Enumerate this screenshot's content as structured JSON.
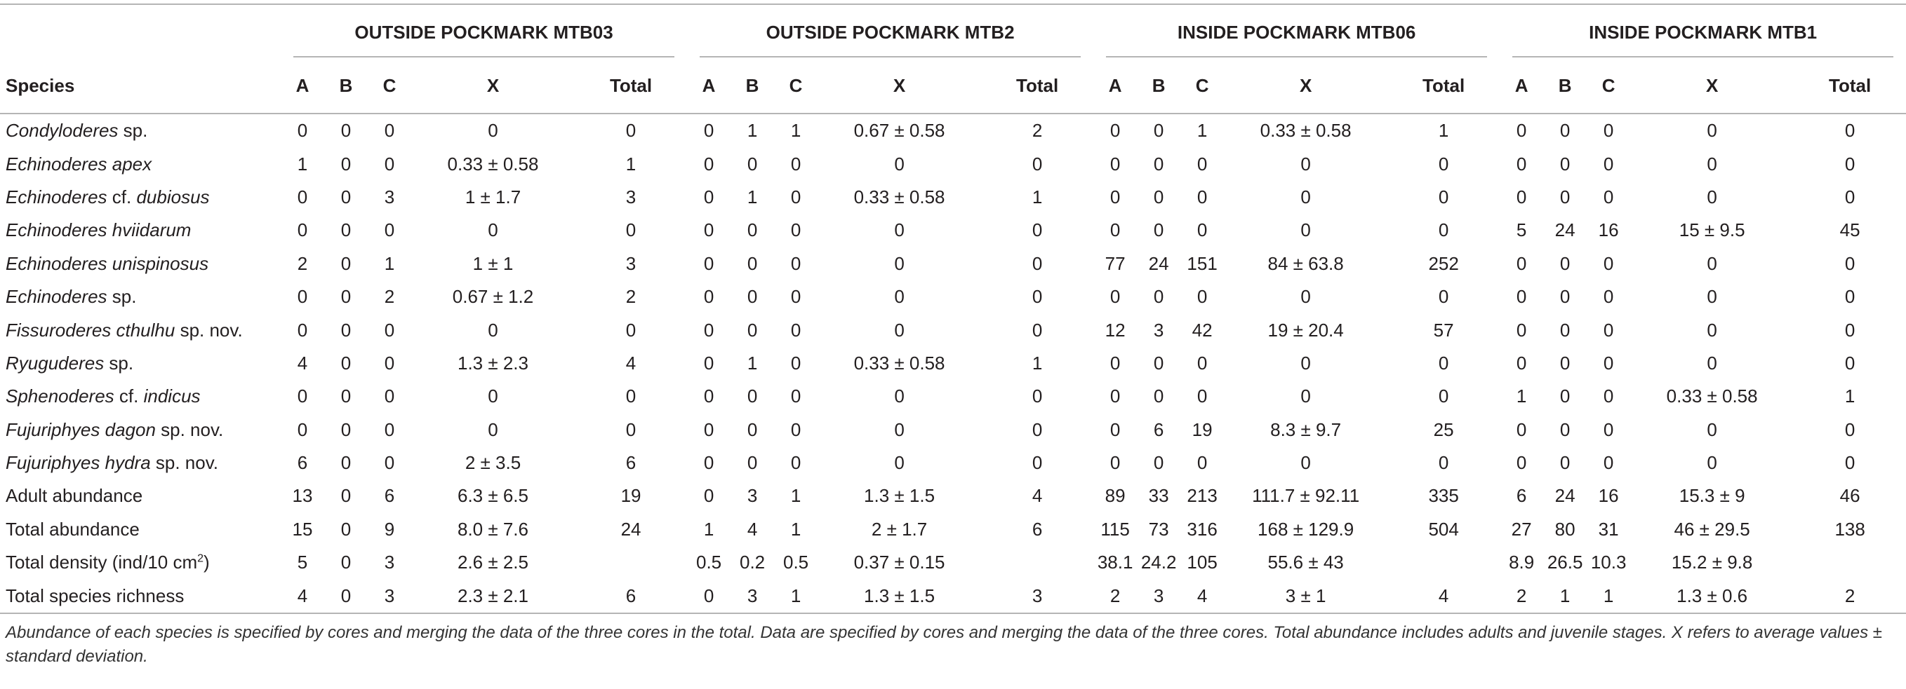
{
  "table": {
    "groups": [
      "OUTSIDE POCKMARK MTB03",
      "OUTSIDE POCKMARK MTB2",
      "INSIDE POCKMARK MTB06",
      "INSIDE POCKMARK MTB1"
    ],
    "header": [
      "Species",
      "A",
      "B",
      "C",
      "X",
      "Total",
      "A",
      "B",
      "C",
      "X",
      "Total",
      "A",
      "B",
      "C",
      "X",
      "Total",
      "A",
      "B",
      "C",
      "X",
      "Total"
    ],
    "rows": [
      {
        "species": [
          {
            "text": "Condyloderes",
            "italic": true
          },
          {
            "text": " sp."
          }
        ],
        "cells": [
          0,
          0,
          0,
          0,
          0,
          0,
          1,
          1,
          "0.67 ± 0.58",
          2,
          0,
          0,
          1,
          "0.33 ± 0.58",
          1,
          0,
          0,
          0,
          0,
          0
        ]
      },
      {
        "species": [
          {
            "text": "Echinoderes apex",
            "italic": true
          }
        ],
        "cells": [
          1,
          0,
          0,
          "0.33 ± 0.58",
          1,
          0,
          0,
          0,
          0,
          0,
          0,
          0,
          0,
          0,
          0,
          0,
          0,
          0,
          0,
          0
        ]
      },
      {
        "species": [
          {
            "text": "Echinoderes",
            "italic": true
          },
          {
            "text": " cf. "
          },
          {
            "text": "dubiosus",
            "italic": true
          }
        ],
        "cells": [
          0,
          0,
          3,
          "1 ± 1.7",
          3,
          0,
          1,
          0,
          "0.33 ± 0.58",
          1,
          0,
          0,
          0,
          0,
          0,
          0,
          0,
          0,
          0,
          0
        ]
      },
      {
        "species": [
          {
            "text": "Echinoderes hviidarum",
            "italic": true
          }
        ],
        "cells": [
          0,
          0,
          0,
          0,
          0,
          0,
          0,
          0,
          0,
          0,
          0,
          0,
          0,
          0,
          0,
          5,
          24,
          16,
          "15 ± 9.5",
          45
        ]
      },
      {
        "species": [
          {
            "text": "Echinoderes unispinosus",
            "italic": true
          }
        ],
        "cells": [
          2,
          0,
          1,
          "1 ± 1",
          3,
          0,
          0,
          0,
          0,
          0,
          77,
          24,
          151,
          "84 ± 63.8",
          252,
          0,
          0,
          0,
          0,
          0
        ]
      },
      {
        "species": [
          {
            "text": "Echinoderes",
            "italic": true
          },
          {
            "text": " sp."
          }
        ],
        "cells": [
          0,
          0,
          2,
          "0.67 ± 1.2",
          2,
          0,
          0,
          0,
          0,
          0,
          0,
          0,
          0,
          0,
          0,
          0,
          0,
          0,
          0,
          0
        ]
      },
      {
        "species": [
          {
            "text": "Fissuroderes cthulhu",
            "italic": true
          },
          {
            "text": " sp. nov."
          }
        ],
        "cells": [
          0,
          0,
          0,
          0,
          0,
          0,
          0,
          0,
          0,
          0,
          12,
          3,
          42,
          "19 ± 20.4",
          57,
          0,
          0,
          0,
          0,
          0
        ]
      },
      {
        "species": [
          {
            "text": "Ryuguderes",
            "italic": true
          },
          {
            "text": " sp."
          }
        ],
        "cells": [
          4,
          0,
          0,
          "1.3 ± 2.3",
          4,
          0,
          1,
          0,
          "0.33 ± 0.58",
          1,
          0,
          0,
          0,
          0,
          0,
          0,
          0,
          0,
          0,
          0
        ]
      },
      {
        "species": [
          {
            "text": "Sphenoderes",
            "italic": true
          },
          {
            "text": " cf. "
          },
          {
            "text": "indicus",
            "italic": true
          }
        ],
        "cells": [
          0,
          0,
          0,
          0,
          0,
          0,
          0,
          0,
          0,
          0,
          0,
          0,
          0,
          0,
          0,
          1,
          0,
          0,
          "0.33 ± 0.58",
          1
        ]
      },
      {
        "species": [
          {
            "text": "Fujuriphyes dagon",
            "italic": true
          },
          {
            "text": " sp. nov."
          }
        ],
        "cells": [
          0,
          0,
          0,
          0,
          0,
          0,
          0,
          0,
          0,
          0,
          0,
          6,
          19,
          "8.3 ± 9.7",
          25,
          0,
          0,
          0,
          0,
          0
        ]
      },
      {
        "species": [
          {
            "text": "Fujuriphyes hydra",
            "italic": true
          },
          {
            "text": " sp. nov."
          }
        ],
        "cells": [
          6,
          0,
          0,
          "2 ± 3.5",
          6,
          0,
          0,
          0,
          0,
          0,
          0,
          0,
          0,
          0,
          0,
          0,
          0,
          0,
          0,
          0
        ]
      },
      {
        "species": [
          {
            "text": "Adult abundance"
          }
        ],
        "cells": [
          13,
          0,
          6,
          "6.3 ± 6.5",
          19,
          0,
          3,
          1,
          "1.3 ± 1.5",
          4,
          89,
          33,
          213,
          "111.7 ± 92.11",
          335,
          6,
          24,
          16,
          "15.3 ± 9",
          46
        ]
      },
      {
        "species": [
          {
            "text": "Total abundance"
          }
        ],
        "cells": [
          15,
          0,
          9,
          "8.0 ± 7.6",
          24,
          1,
          4,
          1,
          "2 ± 1.7",
          6,
          115,
          73,
          316,
          "168 ± 129.9",
          504,
          27,
          80,
          31,
          "46 ± 29.5",
          138
        ]
      },
      {
        "species": [
          {
            "text": "Total density (ind/10 cm"
          },
          {
            "text": "2",
            "sup": true
          },
          {
            "text": ")"
          }
        ],
        "cells": [
          5,
          0,
          3,
          "2.6 ± 2.5",
          null,
          0.5,
          0.2,
          0.5,
          "0.37 ± 0.15",
          null,
          38.1,
          24.2,
          105,
          "55.6 ± 43",
          null,
          8.9,
          26.5,
          10.3,
          "15.2 ± 9.8",
          null
        ]
      },
      {
        "species": [
          {
            "text": "Total species richness"
          }
        ],
        "cells": [
          4,
          0,
          3,
          "2.3 ± 2.1",
          6,
          0,
          3,
          1,
          "1.3 ± 1.5",
          3,
          2,
          3,
          4,
          "3 ± 1",
          4,
          2,
          1,
          1,
          "1.3 ± 0.6",
          2
        ]
      }
    ]
  },
  "footnote": "Abundance of each species is specified by cores and merging the data of the three cores in the total. Data are specified by cores and merging the data of the three cores. Total abundance includes adults and juvenile stages. X refers to average values ± standard deviation."
}
